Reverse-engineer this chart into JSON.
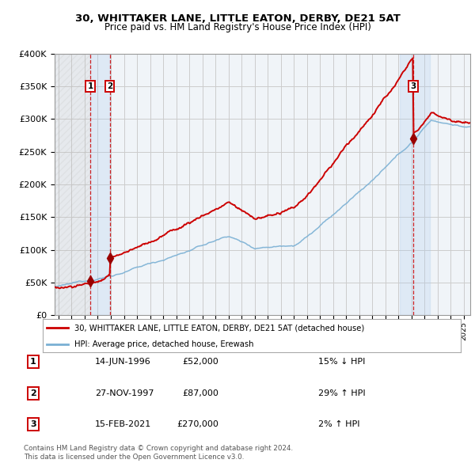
{
  "title1": "30, WHITTAKER LANE, LITTLE EATON, DERBY, DE21 5AT",
  "title2": "Price paid vs. HM Land Registry's House Price Index (HPI)",
  "sales": [
    {
      "label": "1",
      "date_num": 1996.45,
      "price": 52000,
      "note": "14-JUN-1996",
      "amount": "£52,000",
      "change": "15% ↓ HPI"
    },
    {
      "label": "2",
      "date_num": 1997.91,
      "price": 87000,
      "note": "27-NOV-1997",
      "amount": "£87,000",
      "change": "29% ↑ HPI"
    },
    {
      "label": "3",
      "date_num": 2021.12,
      "price": 270000,
      "note": "15-FEB-2021",
      "amount": "£270,000",
      "change": "2% ↑ HPI"
    }
  ],
  "legend_line1": "30, WHITTAKER LANE, LITTLE EATON, DERBY, DE21 5AT (detached house)",
  "legend_line2": "HPI: Average price, detached house, Erewash",
  "footer1": "Contains HM Land Registry data © Crown copyright and database right 2024.",
  "footer2": "This data is licensed under the Open Government Licence v3.0.",
  "table_rows": [
    [
      "1",
      "14-JUN-1996",
      "£52,000",
      "15% ↓ HPI"
    ],
    [
      "2",
      "27-NOV-1997",
      "£87,000",
      "29% ↑ HPI"
    ],
    [
      "3",
      "15-FEB-2021",
      "£270,000",
      "2% ↑ HPI"
    ]
  ],
  "red_color": "#cc0000",
  "blue_color": "#7ab0d4",
  "sale_dot_color": "#990000",
  "grid_color": "#cccccc",
  "bg_color": "#ffffff",
  "plot_bg": "#f0f4f8",
  "ylim": [
    0,
    400000
  ],
  "xlim_start": 1993.7,
  "xlim_end": 2025.5,
  "hpi_base_1994": 44000,
  "hpi_base_2021": 265000,
  "red_base_1994": 44000,
  "sale1_date": 1996.45,
  "sale1_price": 52000,
  "sale2_date": 1997.91,
  "sale2_price": 87000,
  "sale3_date": 2021.12,
  "sale3_price": 270000
}
